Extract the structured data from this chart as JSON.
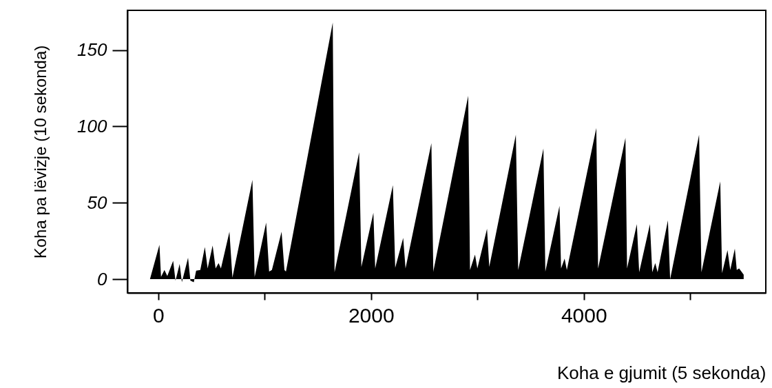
{
  "chart_data": {
    "type": "area",
    "xlabel": "Koha e gjumit (5 sekonda)",
    "ylabel": "Koha pa lëvizje (10 sekonda)",
    "x": [
      -78,
      11,
      26,
      58,
      85,
      140,
      162,
      201,
      222,
      280,
      302,
      334,
      356,
      395,
      438,
      464,
      511,
      539,
      567,
      589,
      669,
      697,
      885,
      906,
      1014,
      1042,
      1068,
      1159,
      1186,
      1200,
      1640,
      1657,
      1888,
      1909,
      2022,
      2039,
      2205,
      2227,
      2302,
      2324,
      2567,
      2585,
      2913,
      2930,
      2977,
      2999,
      3090,
      3111,
      3361,
      3383,
      3620,
      3638,
      3771,
      3786,
      3819,
      3840,
      4117,
      4134,
      4391,
      4406,
      4498,
      4520,
      4621,
      4643,
      4671,
      4693,
      4790,
      4811,
      5083,
      5105,
      5282,
      5299,
      5350,
      5376,
      5419,
      5437,
      5459,
      5502,
      5502
    ],
    "series": [
      {
        "color": "#000000",
        "values": [
          0,
          22.5,
          1.5,
          6,
          2,
          12,
          -1,
          10,
          -2,
          14,
          -1,
          -2,
          5.5,
          6,
          21,
          7,
          22,
          7,
          10.5,
          7,
          31,
          1,
          65,
          1.5,
          37,
          5,
          6,
          31,
          6,
          5,
          168,
          4.5,
          83,
          8,
          43.5,
          7,
          61.5,
          7.5,
          27,
          7,
          89,
          5,
          120,
          6,
          16,
          7,
          33,
          8,
          94.5,
          6,
          85.5,
          5,
          48,
          7,
          13.5,
          6,
          99,
          7,
          92.5,
          7,
          36,
          4.5,
          36,
          4.5,
          10.5,
          4.5,
          38.5,
          0,
          94.5,
          4.5,
          64,
          4,
          19,
          6,
          20,
          6,
          7,
          3,
          0
        ]
      }
    ],
    "xlim": [
      -290,
      5710
    ],
    "ylim": [
      -9,
      176
    ],
    "xticks": [
      0,
      {
        "value": 1000,
        "label": null
      },
      2000,
      {
        "value": 3000,
        "label": null
      },
      4000,
      {
        "value": 5000,
        "label": null
      }
    ],
    "yticks": [
      0,
      50,
      100,
      150
    ],
    "grid": false
  }
}
